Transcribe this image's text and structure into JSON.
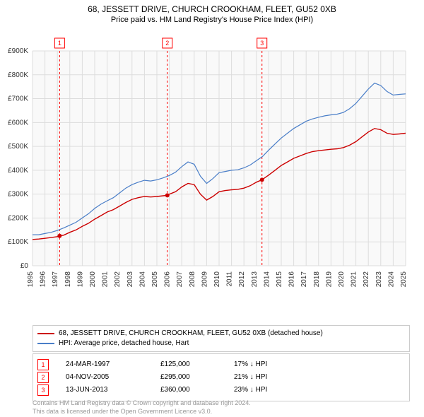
{
  "title": "68, JESSETT DRIVE, CHURCH CROOKHAM, FLEET, GU52 0XB",
  "subtitle": "Price paid vs. HM Land Registry's House Price Index (HPI)",
  "chart": {
    "type": "line",
    "background_color": "#f9f9f9",
    "grid_color": "#dddddd",
    "x_years": [
      1995,
      1996,
      1997,
      1998,
      1999,
      2000,
      2001,
      2002,
      2003,
      2004,
      2005,
      2006,
      2007,
      2008,
      2009,
      2010,
      2011,
      2012,
      2013,
      2014,
      2015,
      2016,
      2017,
      2018,
      2019,
      2020,
      2021,
      2022,
      2023,
      2024,
      2025
    ],
    "xlim": [
      1995,
      2025
    ],
    "ylim": [
      0,
      900000
    ],
    "ytick_step": 100000,
    "ytick_labels": [
      "£0",
      "£100K",
      "£200K",
      "£300K",
      "£400K",
      "£500K",
      "£600K",
      "£700K",
      "£800K",
      "£900K"
    ],
    "series": [
      {
        "name": "property",
        "color": "#cc0000",
        "width": 1.4,
        "data": [
          [
            1995,
            110000
          ],
          [
            1995.5,
            112000
          ],
          [
            1996,
            115000
          ],
          [
            1996.5,
            118000
          ],
          [
            1997,
            122000
          ],
          [
            1997.18,
            125000
          ],
          [
            1997.5,
            128000
          ],
          [
            1998,
            140000
          ],
          [
            1998.5,
            150000
          ],
          [
            1999,
            165000
          ],
          [
            1999.5,
            178000
          ],
          [
            2000,
            195000
          ],
          [
            2000.5,
            210000
          ],
          [
            2001,
            225000
          ],
          [
            2001.5,
            235000
          ],
          [
            2002,
            250000
          ],
          [
            2002.5,
            265000
          ],
          [
            2003,
            278000
          ],
          [
            2003.5,
            285000
          ],
          [
            2004,
            290000
          ],
          [
            2004.5,
            288000
          ],
          [
            2005,
            290000
          ],
          [
            2005.5,
            293000
          ],
          [
            2005.84,
            295000
          ],
          [
            2006,
            300000
          ],
          [
            2006.5,
            310000
          ],
          [
            2007,
            330000
          ],
          [
            2007.5,
            345000
          ],
          [
            2008,
            340000
          ],
          [
            2008.5,
            300000
          ],
          [
            2009,
            275000
          ],
          [
            2009.5,
            290000
          ],
          [
            2010,
            310000
          ],
          [
            2010.5,
            315000
          ],
          [
            2011,
            318000
          ],
          [
            2011.5,
            320000
          ],
          [
            2012,
            325000
          ],
          [
            2012.5,
            335000
          ],
          [
            2013,
            350000
          ],
          [
            2013.45,
            360000
          ],
          [
            2013.5,
            362000
          ],
          [
            2014,
            380000
          ],
          [
            2014.5,
            400000
          ],
          [
            2015,
            420000
          ],
          [
            2015.5,
            435000
          ],
          [
            2016,
            450000
          ],
          [
            2016.5,
            460000
          ],
          [
            2017,
            470000
          ],
          [
            2017.5,
            478000
          ],
          [
            2018,
            482000
          ],
          [
            2018.5,
            485000
          ],
          [
            2019,
            488000
          ],
          [
            2019.5,
            490000
          ],
          [
            2020,
            495000
          ],
          [
            2020.5,
            505000
          ],
          [
            2021,
            520000
          ],
          [
            2021.5,
            540000
          ],
          [
            2022,
            560000
          ],
          [
            2022.5,
            575000
          ],
          [
            2023,
            570000
          ],
          [
            2023.5,
            555000
          ],
          [
            2024,
            550000
          ],
          [
            2024.5,
            552000
          ],
          [
            2025,
            555000
          ]
        ]
      },
      {
        "name": "hpi",
        "color": "#4a7ec8",
        "width": 1.2,
        "data": [
          [
            1995,
            130000
          ],
          [
            1995.5,
            130000
          ],
          [
            1996,
            135000
          ],
          [
            1996.5,
            140000
          ],
          [
            1997,
            148000
          ],
          [
            1997.5,
            158000
          ],
          [
            1998,
            170000
          ],
          [
            1998.5,
            182000
          ],
          [
            1999,
            200000
          ],
          [
            1999.5,
            218000
          ],
          [
            2000,
            240000
          ],
          [
            2000.5,
            258000
          ],
          [
            2001,
            272000
          ],
          [
            2001.5,
            285000
          ],
          [
            2002,
            305000
          ],
          [
            2002.5,
            325000
          ],
          [
            2003,
            340000
          ],
          [
            2003.5,
            350000
          ],
          [
            2004,
            358000
          ],
          [
            2004.5,
            355000
          ],
          [
            2005,
            360000
          ],
          [
            2005.5,
            368000
          ],
          [
            2006,
            378000
          ],
          [
            2006.5,
            392000
          ],
          [
            2007,
            415000
          ],
          [
            2007.5,
            435000
          ],
          [
            2008,
            425000
          ],
          [
            2008.5,
            375000
          ],
          [
            2009,
            345000
          ],
          [
            2009.5,
            365000
          ],
          [
            2010,
            390000
          ],
          [
            2010.5,
            395000
          ],
          [
            2011,
            400000
          ],
          [
            2011.5,
            402000
          ],
          [
            2012,
            410000
          ],
          [
            2012.5,
            422000
          ],
          [
            2013,
            440000
          ],
          [
            2013.5,
            458000
          ],
          [
            2014,
            485000
          ],
          [
            2014.5,
            510000
          ],
          [
            2015,
            535000
          ],
          [
            2015.5,
            555000
          ],
          [
            2016,
            575000
          ],
          [
            2016.5,
            590000
          ],
          [
            2017,
            605000
          ],
          [
            2017.5,
            615000
          ],
          [
            2018,
            622000
          ],
          [
            2018.5,
            628000
          ],
          [
            2019,
            632000
          ],
          [
            2019.5,
            635000
          ],
          [
            2020,
            642000
          ],
          [
            2020.5,
            658000
          ],
          [
            2021,
            680000
          ],
          [
            2021.5,
            710000
          ],
          [
            2022,
            740000
          ],
          [
            2022.5,
            765000
          ],
          [
            2023,
            755000
          ],
          [
            2023.5,
            730000
          ],
          [
            2024,
            715000
          ],
          [
            2024.5,
            718000
          ],
          [
            2025,
            720000
          ]
        ]
      }
    ],
    "markers": [
      {
        "num": "1",
        "year": 1997.18,
        "price": 125000
      },
      {
        "num": "2",
        "year": 2005.84,
        "price": 295000
      },
      {
        "num": "3",
        "year": 2013.45,
        "price": 360000
      }
    ]
  },
  "legend": {
    "items": [
      {
        "color": "#cc0000",
        "label": "68, JESSETT DRIVE, CHURCH CROOKHAM, FLEET, GU52 0XB (detached house)"
      },
      {
        "color": "#4a7ec8",
        "label": "HPI: Average price, detached house, Hart"
      }
    ]
  },
  "sales": [
    {
      "num": "1",
      "date": "24-MAR-1997",
      "price": "£125,000",
      "diff": "17% ↓ HPI"
    },
    {
      "num": "2",
      "date": "04-NOV-2005",
      "price": "£295,000",
      "diff": "21% ↓ HPI"
    },
    {
      "num": "3",
      "date": "13-JUN-2013",
      "price": "£360,000",
      "diff": "23% ↓ HPI"
    }
  ],
  "attribution": {
    "line1": "Contains HM Land Registry data © Crown copyright and database right 2024.",
    "line2": "This data is licensed under the Open Government Licence v3.0."
  }
}
